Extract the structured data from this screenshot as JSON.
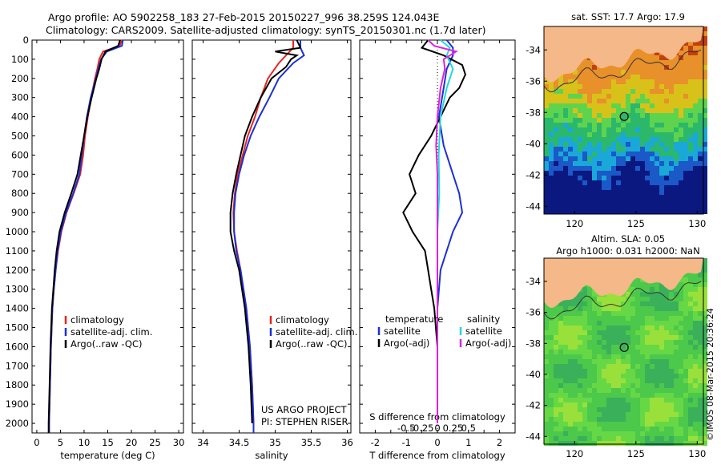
{
  "header": {
    "line1": "Argo profile: AO 5902258_183 27-Feb-2015 20150227_996 38.259S 124.043E",
    "line2": "Climatology: CARS2009. Satellite-adjusted climatology: synTS_20150301.nc (1.7d later)"
  },
  "colors": {
    "climatology": "#e8231f",
    "satellite": "#1c2fd9",
    "argo": "#000000",
    "cyan": "#22d8e0",
    "magenta": "#e020e0",
    "land": "#f5b888"
  },
  "chart_data": [
    {
      "type": "line",
      "id": "temperature",
      "xlabel": "temperature (deg C)",
      "ylabel": "",
      "xlim": [
        -1,
        31
      ],
      "ylim": [
        2050,
        0
      ],
      "xticks": [
        "0",
        "5",
        "10",
        "15",
        "20",
        "25",
        "30"
      ],
      "yticks": [
        "0",
        "100",
        "200",
        "300",
        "400",
        "500",
        "600",
        "700",
        "800",
        "900",
        "1000",
        "1100",
        "1200",
        "1300",
        "1400",
        "1500",
        "1600",
        "1700",
        "1800",
        "1900",
        "2000"
      ],
      "legend": [
        "climatology",
        "satellite-adj. clim.",
        "Argo(..raw -QC)"
      ],
      "series": [
        {
          "name": "climatology",
          "depth": [
            0,
            30,
            60,
            100,
            150,
            200,
            300,
            400,
            500,
            600,
            700,
            800,
            900,
            1000,
            1100,
            1200,
            1300,
            1400,
            1600,
            1800,
            2000,
            2050
          ],
          "values": [
            18.0,
            17.5,
            14.0,
            13.2,
            12.8,
            12.3,
            11.5,
            10.8,
            10.2,
            9.8,
            9.2,
            7.8,
            6.3,
            5.2,
            4.5,
            4.0,
            3.6,
            3.3,
            3.0,
            2.8,
            2.6,
            2.6
          ]
        },
        {
          "name": "satellite",
          "depth": [
            0,
            30,
            60,
            100,
            150,
            200,
            300,
            400,
            500,
            600,
            700,
            800,
            900,
            1000,
            1100,
            1200,
            1300,
            1400,
            1600,
            1800,
            2000,
            2050
          ],
          "values": [
            18.2,
            18.0,
            14.8,
            13.6,
            13.0,
            12.5,
            11.4,
            10.6,
            10.0,
            9.5,
            9.0,
            7.7,
            6.2,
            5.1,
            4.4,
            4.0,
            3.6,
            3.3,
            3.0,
            2.8,
            2.6,
            2.6
          ]
        },
        {
          "name": "Argo",
          "depth": [
            0,
            30,
            60,
            100,
            150,
            200,
            300,
            400,
            500,
            600,
            700,
            800,
            900,
            1000,
            1100,
            1200,
            1300,
            1400,
            1600,
            1800,
            2000,
            2050
          ],
          "values": [
            17.6,
            17.2,
            14.5,
            13.7,
            13.2,
            12.6,
            11.6,
            10.7,
            10.0,
            9.3,
            8.6,
            7.3,
            5.9,
            4.8,
            4.2,
            3.8,
            3.5,
            3.2,
            2.9,
            2.7,
            2.5,
            2.5
          ]
        }
      ]
    },
    {
      "type": "line",
      "id": "salinity",
      "xlabel": "salinity",
      "ylabel": "",
      "xlim": [
        33.85,
        36.05
      ],
      "ylim": [
        2050,
        0
      ],
      "xticks": [
        "34",
        "34.5",
        "35",
        "35.5",
        "36"
      ],
      "legend": [
        "climatology",
        "satellite-adj. clim.",
        "Argo(..raw -QC)"
      ],
      "annotation": [
        "US ARGO PROJECT",
        "PI: STEPHEN RISER"
      ],
      "series": [
        {
          "name": "climatology",
          "depth": [
            0,
            40,
            80,
            120,
            200,
            300,
            400,
            500,
            600,
            700,
            800,
            900,
            1000,
            1100,
            1200,
            1400,
            1600,
            1800,
            2000,
            2050
          ],
          "values": [
            35.25,
            35.25,
            35.15,
            35.05,
            34.9,
            34.8,
            34.72,
            34.62,
            34.55,
            34.48,
            34.44,
            34.42,
            34.43,
            34.47,
            34.52,
            34.6,
            34.65,
            34.68,
            34.7,
            34.7
          ]
        },
        {
          "name": "satellite",
          "depth": [
            0,
            40,
            80,
            120,
            200,
            300,
            400,
            500,
            600,
            700,
            800,
            900,
            1000,
            1100,
            1200,
            1400,
            1600,
            1800,
            2000,
            2050
          ],
          "values": [
            35.35,
            35.35,
            35.4,
            35.25,
            35.05,
            34.92,
            34.78,
            34.66,
            34.57,
            34.5,
            34.45,
            34.43,
            34.43,
            34.46,
            34.52,
            34.6,
            34.65,
            34.68,
            34.7,
            34.7
          ]
        },
        {
          "name": "Argo",
          "depth": [
            0,
            40,
            60,
            80,
            100,
            140,
            200,
            300,
            400,
            500,
            600,
            700,
            800,
            900,
            1000,
            1100,
            1200,
            1400,
            1600,
            1800,
            2000
          ],
          "values": [
            35.3,
            35.35,
            35.0,
            35.3,
            35.22,
            35.15,
            34.95,
            34.8,
            34.68,
            34.58,
            34.52,
            34.46,
            34.41,
            34.38,
            34.38,
            34.43,
            34.5,
            34.58,
            34.63,
            34.66,
            34.68
          ]
        }
      ]
    },
    {
      "type": "line",
      "id": "difference",
      "xlabel": "T difference from climatology",
      "xlabel_top": "S difference from climatology",
      "xlim": [
        -2.5,
        2.5
      ],
      "ylim": [
        2050,
        0
      ],
      "xticks_T": [
        "-2",
        "-1.5",
        "-1",
        "-0.5",
        "0",
        "0.5",
        "1",
        "1.5",
        "2"
      ],
      "xticks_S": [
        "-0.5",
        "-0.25",
        "0",
        "0.25",
        "0.5"
      ],
      "legend": {
        "temperature": "temperature",
        "salinity": "salinity",
        "t_satellite": "satellite",
        "t_argo": "Argo(-adj)",
        "s_satellite": "satellite",
        "s_argo": "Argo(-adj)"
      },
      "series": [
        {
          "name": "T satellite",
          "depth": [
            0,
            40,
            80,
            150,
            250,
            400,
            550,
            700,
            800,
            900,
            1000,
            1200,
            1400,
            1600,
            1800,
            2000
          ],
          "values": [
            0.3,
            0.5,
            0.5,
            0.3,
            0.2,
            0.05,
            0.2,
            0.5,
            0.7,
            0.8,
            0.5,
            0.1,
            0.0,
            0.0,
            0.0,
            0.0
          ]
        },
        {
          "name": "T Argo",
          "depth": [
            0,
            40,
            80,
            130,
            180,
            250,
            300,
            400,
            500,
            600,
            700,
            800,
            900,
            1000,
            1100,
            1200,
            1300,
            1400,
            1600,
            1800,
            2000
          ],
          "values": [
            -0.3,
            -0.5,
            0.2,
            0.8,
            0.9,
            0.7,
            0.4,
            0.1,
            -0.2,
            -0.6,
            -0.9,
            -0.7,
            -1.1,
            -0.8,
            -0.4,
            -0.3,
            -0.2,
            -0.1,
            0.0,
            0.0,
            0.0
          ]
        },
        {
          "name": "S satellite",
          "depth": [
            0,
            40,
            80,
            150,
            250,
            400,
            600,
            800,
            1000,
            1200,
            1600,
            2000
          ],
          "values": [
            0.05,
            0.2,
            0.15,
            0.25,
            0.15,
            0.05,
            0.02,
            0.03,
            0.0,
            0.0,
            0.0,
            0.0
          ]
        },
        {
          "name": "S Argo",
          "depth": [
            0,
            30,
            60,
            100,
            150,
            250,
            400,
            550,
            700,
            900,
            1200,
            1600,
            2000
          ],
          "values": [
            -0.15,
            -0.05,
            0.3,
            0.1,
            0.12,
            0.05,
            0.0,
            -0.02,
            0.0,
            0.0,
            0.0,
            0.0,
            0.0
          ]
        }
      ]
    },
    {
      "type": "heatmap",
      "id": "sst_map",
      "title": "sat. SST: 17.7 Argo: 17.9",
      "xlim": [
        117.5,
        130.5
      ],
      "ylim": [
        -44.5,
        -32.5
      ],
      "xticks": [
        "120",
        "125",
        "130"
      ],
      "yticks": [
        "-34",
        "-36",
        "-38",
        "-40",
        "-42",
        "-44"
      ],
      "argo_position": {
        "lon": 124.043,
        "lat": -38.259
      }
    },
    {
      "type": "heatmap",
      "id": "sla_map",
      "title1": "Altim. SLA: 0.05",
      "title2": "Argo h1000: 0.031 h2000: NaN",
      "xlim": [
        117.5,
        130.5
      ],
      "ylim": [
        -44.5,
        -32.5
      ],
      "xticks": [
        "120",
        "125",
        "130"
      ],
      "yticks": [
        "-34",
        "-36",
        "-38",
        "-40",
        "-42",
        "-44"
      ],
      "argo_position": {
        "lon": 124.043,
        "lat": -38.259
      }
    }
  ],
  "footer": {
    "credit": "©IMOS 08-Mar-2015 20:36:24"
  }
}
